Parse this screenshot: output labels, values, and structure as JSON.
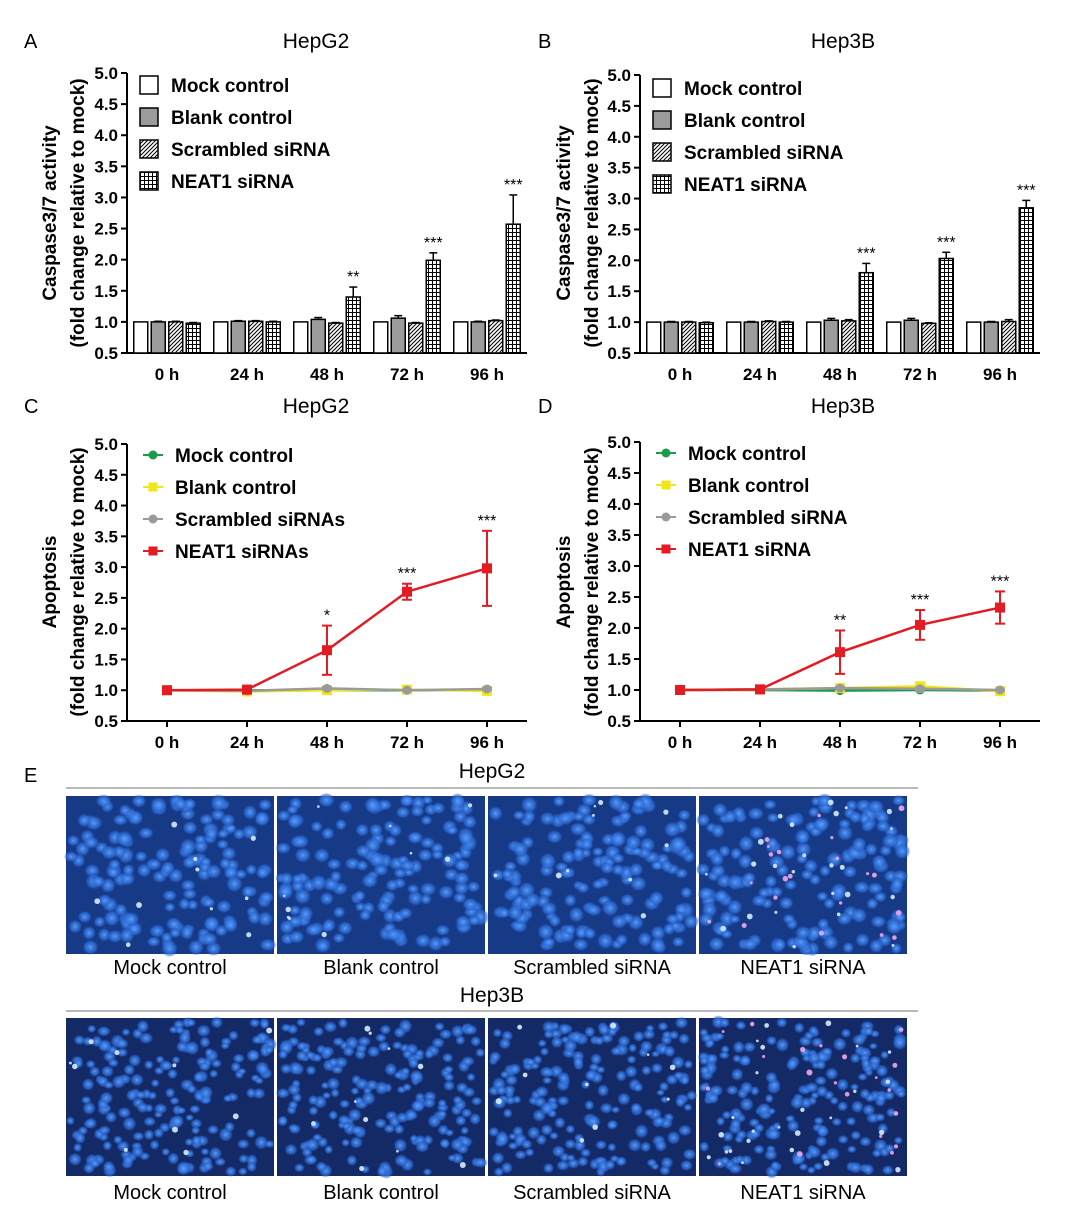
{
  "palette": {
    "mock_line": "#1e9a4b",
    "blank_line": "#f2e51a",
    "scrambled_line": "#9a9a9a",
    "neat1_line": "#e31b23",
    "blank_bar": "#9b9b9b",
    "scale_bar": "#8f8f8f"
  },
  "chart_data": [
    {
      "id": "A",
      "type": "bar",
      "panel_label": "A",
      "title": "HepG2",
      "ylabel_line1": "Caspase3/7 activity",
      "ylabel_line2": "(fold change relative to mock)",
      "ylim": [
        0.5,
        5.0
      ],
      "yticks": [
        "0.5",
        "1.0",
        "1.5",
        "2.0",
        "2.5",
        "3.0",
        "3.5",
        "4.0",
        "4.5",
        "5.0"
      ],
      "categories": [
        "0 h",
        "24 h",
        "48 h",
        "72 h",
        "96 h"
      ],
      "legend_position": "top-left",
      "series": [
        {
          "name": "Mock control",
          "pattern": "white",
          "values": [
            1.0,
            1.0,
            1.0,
            1.0,
            1.0
          ],
          "errors": [
            0,
            0,
            0,
            0,
            0
          ]
        },
        {
          "name": "Blank control",
          "pattern": "gray",
          "values": [
            1.0,
            1.01,
            1.04,
            1.06,
            1.0
          ],
          "errors": [
            0.01,
            0.01,
            0.03,
            0.04,
            0.01
          ]
        },
        {
          "name": "Scrambled siRNA",
          "pattern": "diag",
          "values": [
            1.0,
            1.01,
            0.98,
            0.98,
            1.02
          ],
          "errors": [
            0.01,
            0.01,
            0.01,
            0.01,
            0.01
          ]
        },
        {
          "name": "NEAT1 siRNA",
          "pattern": "grid",
          "values": [
            0.98,
            1.0,
            1.4,
            1.99,
            2.57
          ],
          "errors": [
            0.01,
            0.01,
            0.16,
            0.12,
            0.47
          ]
        }
      ],
      "annotations": [
        "",
        "",
        "**",
        "***",
        "***"
      ]
    },
    {
      "id": "B",
      "type": "bar",
      "panel_label": "B",
      "title": "Hep3B",
      "ylabel_line1": "Caspase3/7 activity",
      "ylabel_line2": "(fold change relative to mock)",
      "ylim": [
        0.5,
        5.0
      ],
      "yticks": [
        "0.5",
        "1.0",
        "1.5",
        "2.0",
        "2.5",
        "3.0",
        "3.5",
        "4.0",
        "4.5",
        "5.0"
      ],
      "categories": [
        "0 h",
        "24 h",
        "48 h",
        "72 h",
        "96 h"
      ],
      "legend_position": "top-left",
      "series": [
        {
          "name": "Mock control",
          "pattern": "white",
          "values": [
            1.0,
            1.0,
            1.0,
            1.0,
            1.0
          ],
          "errors": [
            0,
            0,
            0,
            0,
            0
          ]
        },
        {
          "name": "Blank control",
          "pattern": "gray",
          "values": [
            1.0,
            1.0,
            1.03,
            1.03,
            1.0
          ],
          "errors": [
            0.01,
            0.01,
            0.03,
            0.03,
            0.01
          ]
        },
        {
          "name": "Scrambled siRNA",
          "pattern": "diag",
          "values": [
            1.0,
            1.01,
            1.02,
            0.98,
            1.01
          ],
          "errors": [
            0.01,
            0.01,
            0.02,
            0.01,
            0.03
          ]
        },
        {
          "name": "NEAT1 siRNA",
          "pattern": "grid",
          "values": [
            0.99,
            1.0,
            1.8,
            2.03,
            2.85
          ],
          "errors": [
            0.01,
            0.01,
            0.15,
            0.1,
            0.12
          ]
        }
      ],
      "annotations": [
        "",
        "",
        "***",
        "***",
        "***"
      ]
    },
    {
      "id": "C",
      "type": "line",
      "panel_label": "C",
      "title": "HepG2",
      "ylabel_line1": "Apoptosis",
      "ylabel_line2": "(fold change relative to mock)",
      "ylim": [
        0.5,
        5.0
      ],
      "yticks": [
        "0.5",
        "1.0",
        "1.5",
        "2.0",
        "2.5",
        "3.0",
        "3.5",
        "4.0",
        "4.5",
        "5.0"
      ],
      "categories": [
        "0 h",
        "24 h",
        "48 h",
        "72 h",
        "96 h"
      ],
      "legend_position": "top-left",
      "series": [
        {
          "name": "Mock control",
          "color": "#1e9a4b",
          "marker": "circle",
          "values": [
            1.0,
            1.0,
            1.0,
            1.0,
            1.0
          ],
          "errors": [
            0,
            0,
            0,
            0,
            0
          ]
        },
        {
          "name": "Blank control",
          "color": "#f2e51a",
          "marker": "square",
          "values": [
            1.0,
            0.98,
            1.0,
            1.01,
            0.99
          ],
          "errors": [
            0,
            0.01,
            0.01,
            0.02,
            0.01
          ]
        },
        {
          "name": "Scrambled siRNAs",
          "color": "#9a9a9a",
          "marker": "circle",
          "values": [
            1.0,
            0.99,
            1.03,
            1.0,
            1.02
          ],
          "errors": [
            0,
            0.01,
            0.02,
            0.01,
            0.02
          ]
        },
        {
          "name": "NEAT1 siRNAs",
          "color": "#e31b23",
          "marker": "square",
          "values": [
            1.0,
            1.01,
            1.65,
            2.6,
            2.98
          ],
          "errors": [
            0,
            0.01,
            0.4,
            0.13,
            0.61
          ]
        }
      ],
      "annotations": [
        "",
        "",
        "*",
        "***",
        "***"
      ]
    },
    {
      "id": "D",
      "type": "line",
      "panel_label": "D",
      "title": "Hep3B",
      "ylabel_line1": "Apoptosis",
      "ylabel_line2": "(fold change relative to mock)",
      "ylim": [
        0.5,
        5.0
      ],
      "yticks": [
        "0.5",
        "1.0",
        "1.5",
        "2.0",
        "2.5",
        "3.0",
        "3.5",
        "4.0",
        "4.5",
        "5.0"
      ],
      "categories": [
        "0 h",
        "24 h",
        "48 h",
        "72 h",
        "96 h"
      ],
      "legend_position": "top-left",
      "series": [
        {
          "name": "Mock control",
          "color": "#1e9a4b",
          "marker": "circle",
          "values": [
            1.0,
            1.0,
            0.99,
            1.0,
            0.99
          ],
          "errors": [
            0,
            0,
            0.01,
            0.01,
            0.01
          ]
        },
        {
          "name": "Blank control",
          "color": "#f2e51a",
          "marker": "square",
          "values": [
            1.0,
            1.01,
            1.03,
            1.06,
            0.98
          ],
          "errors": [
            0,
            0.01,
            0.02,
            0.02,
            0.01
          ]
        },
        {
          "name": "Scrambled siRNA",
          "color": "#9a9a9a",
          "marker": "circle",
          "values": [
            1.0,
            1.01,
            1.03,
            1.02,
            1.0
          ],
          "errors": [
            0,
            0.01,
            0.02,
            0.02,
            0.01
          ]
        },
        {
          "name": "NEAT1 siRNA",
          "color": "#e31b23",
          "marker": "square",
          "values": [
            1.0,
            1.01,
            1.61,
            2.05,
            2.33
          ],
          "errors": [
            0,
            0.01,
            0.35,
            0.24,
            0.26
          ]
        }
      ],
      "annotations": [
        "",
        "",
        "**",
        "***",
        "***"
      ]
    }
  ],
  "micrographs": {
    "panel_label": "E",
    "groups": [
      {
        "title": "HepG2",
        "labels": [
          "Mock control",
          "Blank control",
          "Scrambled siRNA",
          "NEAT1 siRNA"
        ]
      },
      {
        "title": "Hep3B",
        "labels": [
          "Mock control",
          "Blank control",
          "Scrambled siRNA",
          "NEAT1 siRNA"
        ]
      }
    ]
  }
}
